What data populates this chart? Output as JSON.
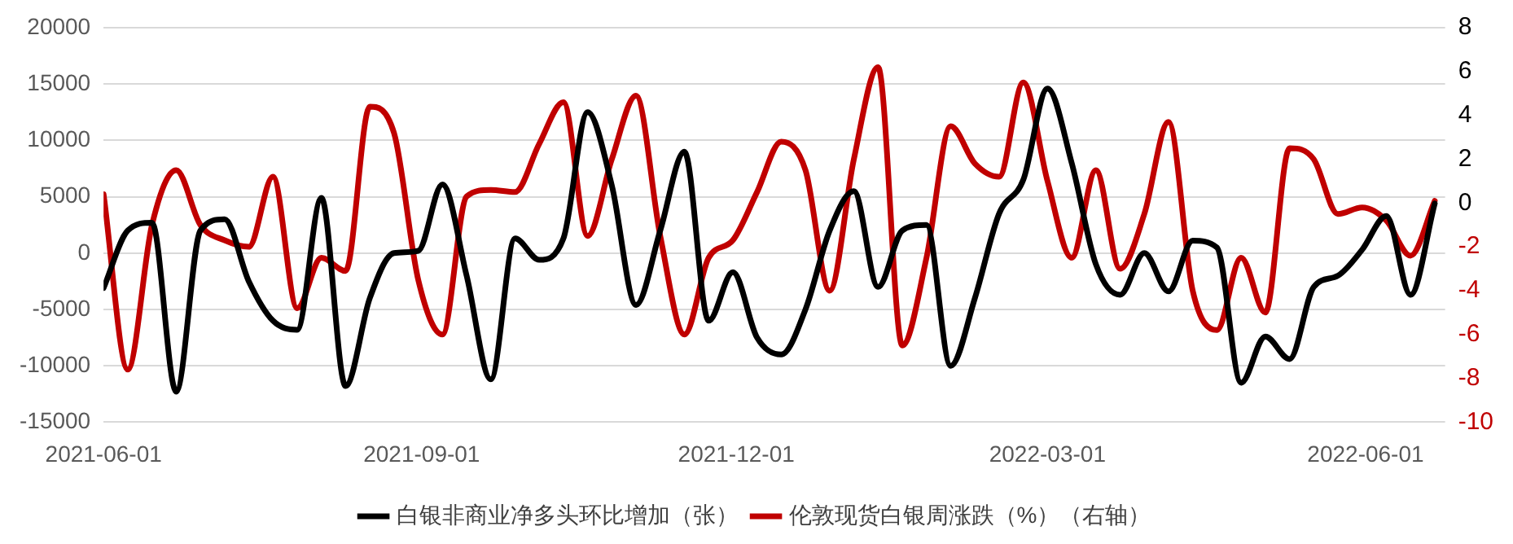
{
  "chart_data": {
    "type": "line",
    "x": [
      "2021-06-01",
      "2021-06-08",
      "2021-06-15",
      "2021-06-22",
      "2021-06-29",
      "2021-07-06",
      "2021-07-13",
      "2021-07-20",
      "2021-07-27",
      "2021-08-03",
      "2021-08-10",
      "2021-08-17",
      "2021-08-24",
      "2021-08-31",
      "2021-09-07",
      "2021-09-14",
      "2021-09-21",
      "2021-09-28",
      "2021-10-05",
      "2021-10-12",
      "2021-10-19",
      "2021-10-26",
      "2021-11-02",
      "2021-11-09",
      "2021-11-16",
      "2021-11-23",
      "2021-11-30",
      "2021-12-07",
      "2021-12-14",
      "2021-12-21",
      "2021-12-28",
      "2022-01-04",
      "2022-01-11",
      "2022-01-18",
      "2022-01-25",
      "2022-02-01",
      "2022-02-08",
      "2022-02-15",
      "2022-02-22",
      "2022-03-01",
      "2022-03-08",
      "2022-03-15",
      "2022-03-22",
      "2022-03-29",
      "2022-04-05",
      "2022-04-12",
      "2022-04-19",
      "2022-04-26",
      "2022-05-03",
      "2022-05-10",
      "2022-05-17",
      "2022-05-24",
      "2022-05-31",
      "2022-06-07",
      "2022-06-14",
      "2022-06-21"
    ],
    "series": [
      {
        "name": "白银非商业净多头环比增加（张）",
        "color": "#000000",
        "values": [
          -3100,
          2000,
          2700,
          -12300,
          2000,
          3000,
          -2500,
          -6000,
          -6800,
          4900,
          -11800,
          -4000,
          0,
          200,
          6100,
          -2000,
          -11200,
          1300,
          -600,
          1300,
          12500,
          6000,
          -4600,
          2000,
          9000,
          -6000,
          -1700,
          -7500,
          -9000,
          -5000,
          2000,
          5500,
          -3000,
          2000,
          2500,
          -10000,
          -4000,
          3500,
          6500,
          14600,
          8000,
          -1000,
          -3700,
          0,
          -3400,
          1100,
          500,
          -11500,
          -7400,
          -9400,
          -3000,
          -2000,
          300,
          3300,
          -3700,
          4400
        ]
      },
      {
        "name": "伦敦现货白银周涨跌（%）（右轴）",
        "color": "#c00000",
        "axis": "y2",
        "values": [
          0.4,
          -7.6,
          -1.0,
          1.5,
          -1.0,
          -1.7,
          -2.0,
          1.2,
          -4.8,
          -2.5,
          -3.1,
          4.4,
          3.2,
          -3.5,
          -6.0,
          0.3,
          0.6,
          0.5,
          2.7,
          4.6,
          -1.5,
          2.0,
          4.9,
          -1.5,
          -6.0,
          -2.5,
          -1.7,
          0.5,
          2.8,
          1.5,
          -4.0,
          2.0,
          6.2,
          -6.5,
          -2.5,
          3.5,
          1.8,
          1.2,
          5.5,
          1.0,
          -2.5,
          1.5,
          -3.0,
          -0.5,
          3.7,
          -4.0,
          -5.8,
          -2.5,
          -5.0,
          2.5,
          2.0,
          -0.5,
          -0.2,
          -0.8,
          -2.4,
          0.1
        ]
      }
    ],
    "xlim": [
      "2021-06-01",
      "2022-06-24"
    ],
    "xticks": [
      "2021-06-01",
      "2021-09-01",
      "2021-12-01",
      "2022-03-01",
      "2022-06-01"
    ],
    "ylim": [
      -15000,
      20000
    ],
    "yticks": [
      -15000,
      -10000,
      -5000,
      0,
      5000,
      10000,
      15000,
      20000
    ],
    "y2lim": [
      -10,
      8
    ],
    "y2ticks": [
      -10,
      -8,
      -6,
      -4,
      -2,
      0,
      2,
      4,
      6,
      8
    ],
    "grid": "y",
    "legend": "bottom",
    "marker": "none",
    "line_style": "solid"
  }
}
